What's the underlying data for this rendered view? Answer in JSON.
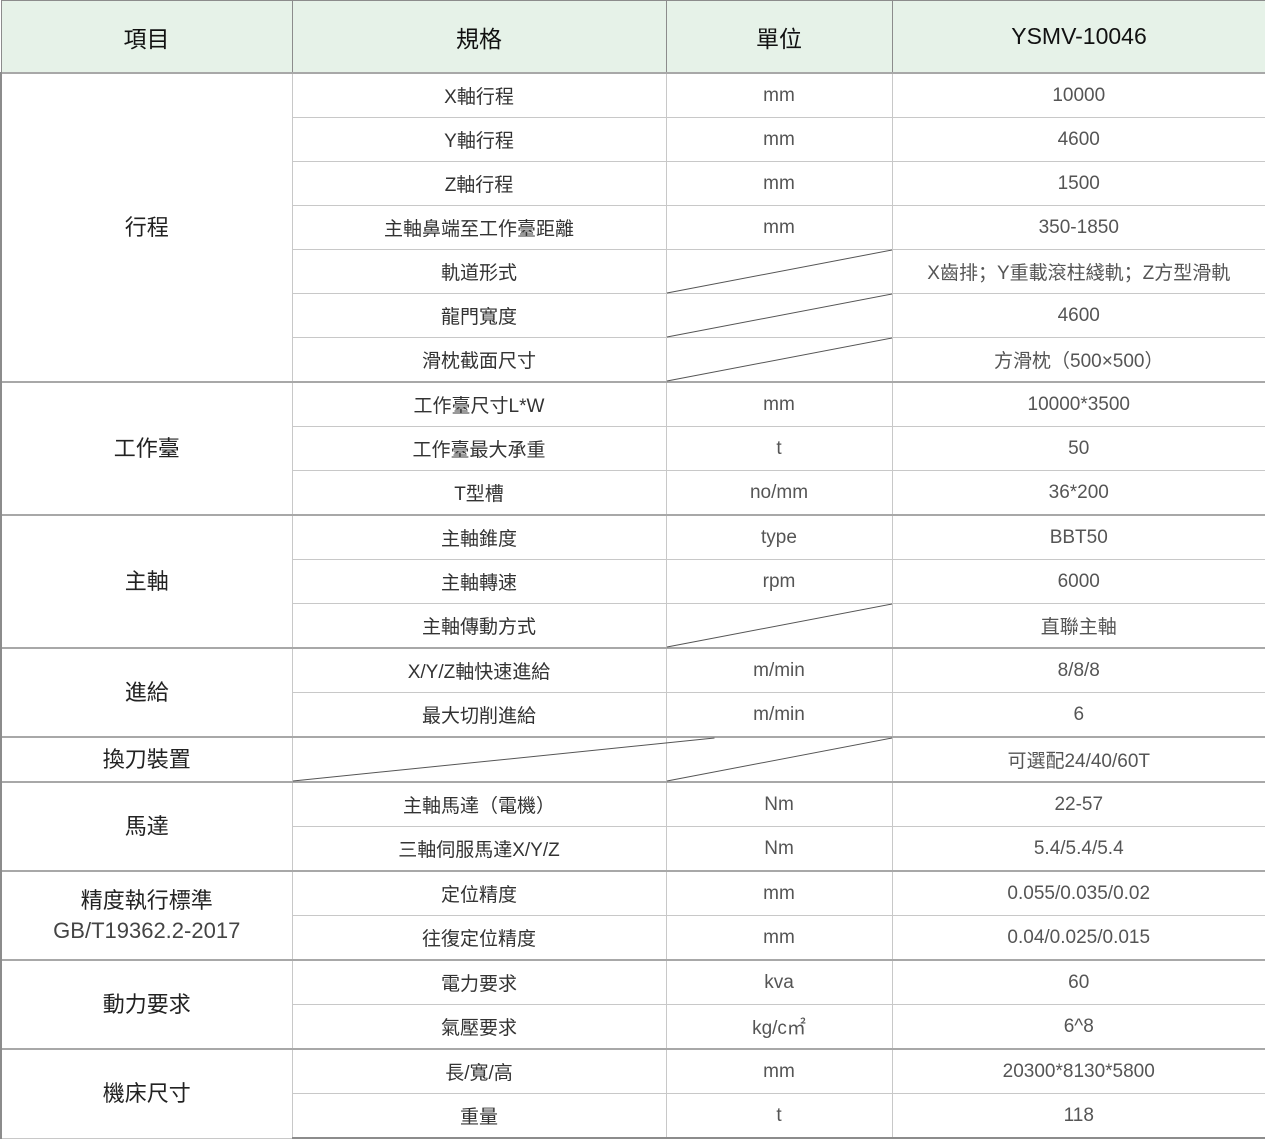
{
  "header": {
    "item": "項目",
    "spec": "規格",
    "unit": "單位",
    "model": "YSMV-10046"
  },
  "colors": {
    "header_bg": "#e6f2e8",
    "border": "#8c8c8c"
  },
  "groups": [
    {
      "label": "行程",
      "rows": [
        {
          "spec": "X軸行程",
          "unit": "mm",
          "value": "10000"
        },
        {
          "spec": "Y軸行程",
          "unit": "mm",
          "value": "4600"
        },
        {
          "spec": "Z軸行程",
          "unit": "mm",
          "value": "1500"
        },
        {
          "spec": "主軸鼻端至工作臺距離",
          "unit": "mm",
          "value": "350-1850"
        },
        {
          "spec": "軌道形式",
          "unit": null,
          "value": "X齒排；Y重載滾柱綫軌；Z方型滑軌"
        },
        {
          "spec": "龍門寬度",
          "unit": null,
          "value": "4600"
        },
        {
          "spec": "滑枕截面尺寸",
          "unit": null,
          "value": "方滑枕（500×500）"
        }
      ]
    },
    {
      "label": "工作臺",
      "rows": [
        {
          "spec": "工作臺尺寸L*W",
          "unit": "mm",
          "value": "10000*3500"
        },
        {
          "spec": "工作臺最大承重",
          "unit": "t",
          "value": "50"
        },
        {
          "spec": "T型槽",
          "unit": "no/mm",
          "value": "36*200"
        }
      ]
    },
    {
      "label": "主軸",
      "rows": [
        {
          "spec": "主軸錐度",
          "unit": "type",
          "value": "BBT50"
        },
        {
          "spec": "主軸轉速",
          "unit": "rpm",
          "value": "6000"
        },
        {
          "spec": "主軸傳動方式",
          "unit": null,
          "value": "直聯主軸"
        }
      ]
    },
    {
      "label": "進給",
      "rows": [
        {
          "spec": "X/Y/Z軸快速進給",
          "unit": "m/min",
          "value": "8/8/8"
        },
        {
          "spec": "最大切削進給",
          "unit": "m/min",
          "value": "6"
        }
      ]
    },
    {
      "label": "換刀裝置",
      "rows": [
        {
          "spec": null,
          "unit": null,
          "value": "可選配24/40/60T"
        }
      ]
    },
    {
      "label": "馬達",
      "rows": [
        {
          "spec": "主軸馬達（電機）",
          "unit": "Nm",
          "value": "22-57"
        },
        {
          "spec": "三軸伺服馬達X/Y/Z",
          "unit": "Nm",
          "value": "5.4/5.4/5.4"
        }
      ]
    },
    {
      "label": "精度執行標準",
      "sublabel": "GB/T19362.2-2017",
      "rows": [
        {
          "spec": "定位精度",
          "unit": "mm",
          "value": "0.055/0.035/0.02"
        },
        {
          "spec": "往復定位精度",
          "unit": "mm",
          "value": "0.04/0.025/0.015"
        }
      ]
    },
    {
      "label": "動力要求",
      "rows": [
        {
          "spec": "電力要求",
          "unit": "kva",
          "value": "60"
        },
        {
          "spec": "氣壓要求",
          "unit": "kg/c㎡",
          "value": "6^8"
        }
      ]
    },
    {
      "label": "機床尺寸",
      "rows": [
        {
          "spec": "長/寬/高",
          "unit": "mm",
          "value": "20300*8130*5800"
        },
        {
          "spec": "重量",
          "unit": "t",
          "value": "118"
        }
      ]
    }
  ]
}
